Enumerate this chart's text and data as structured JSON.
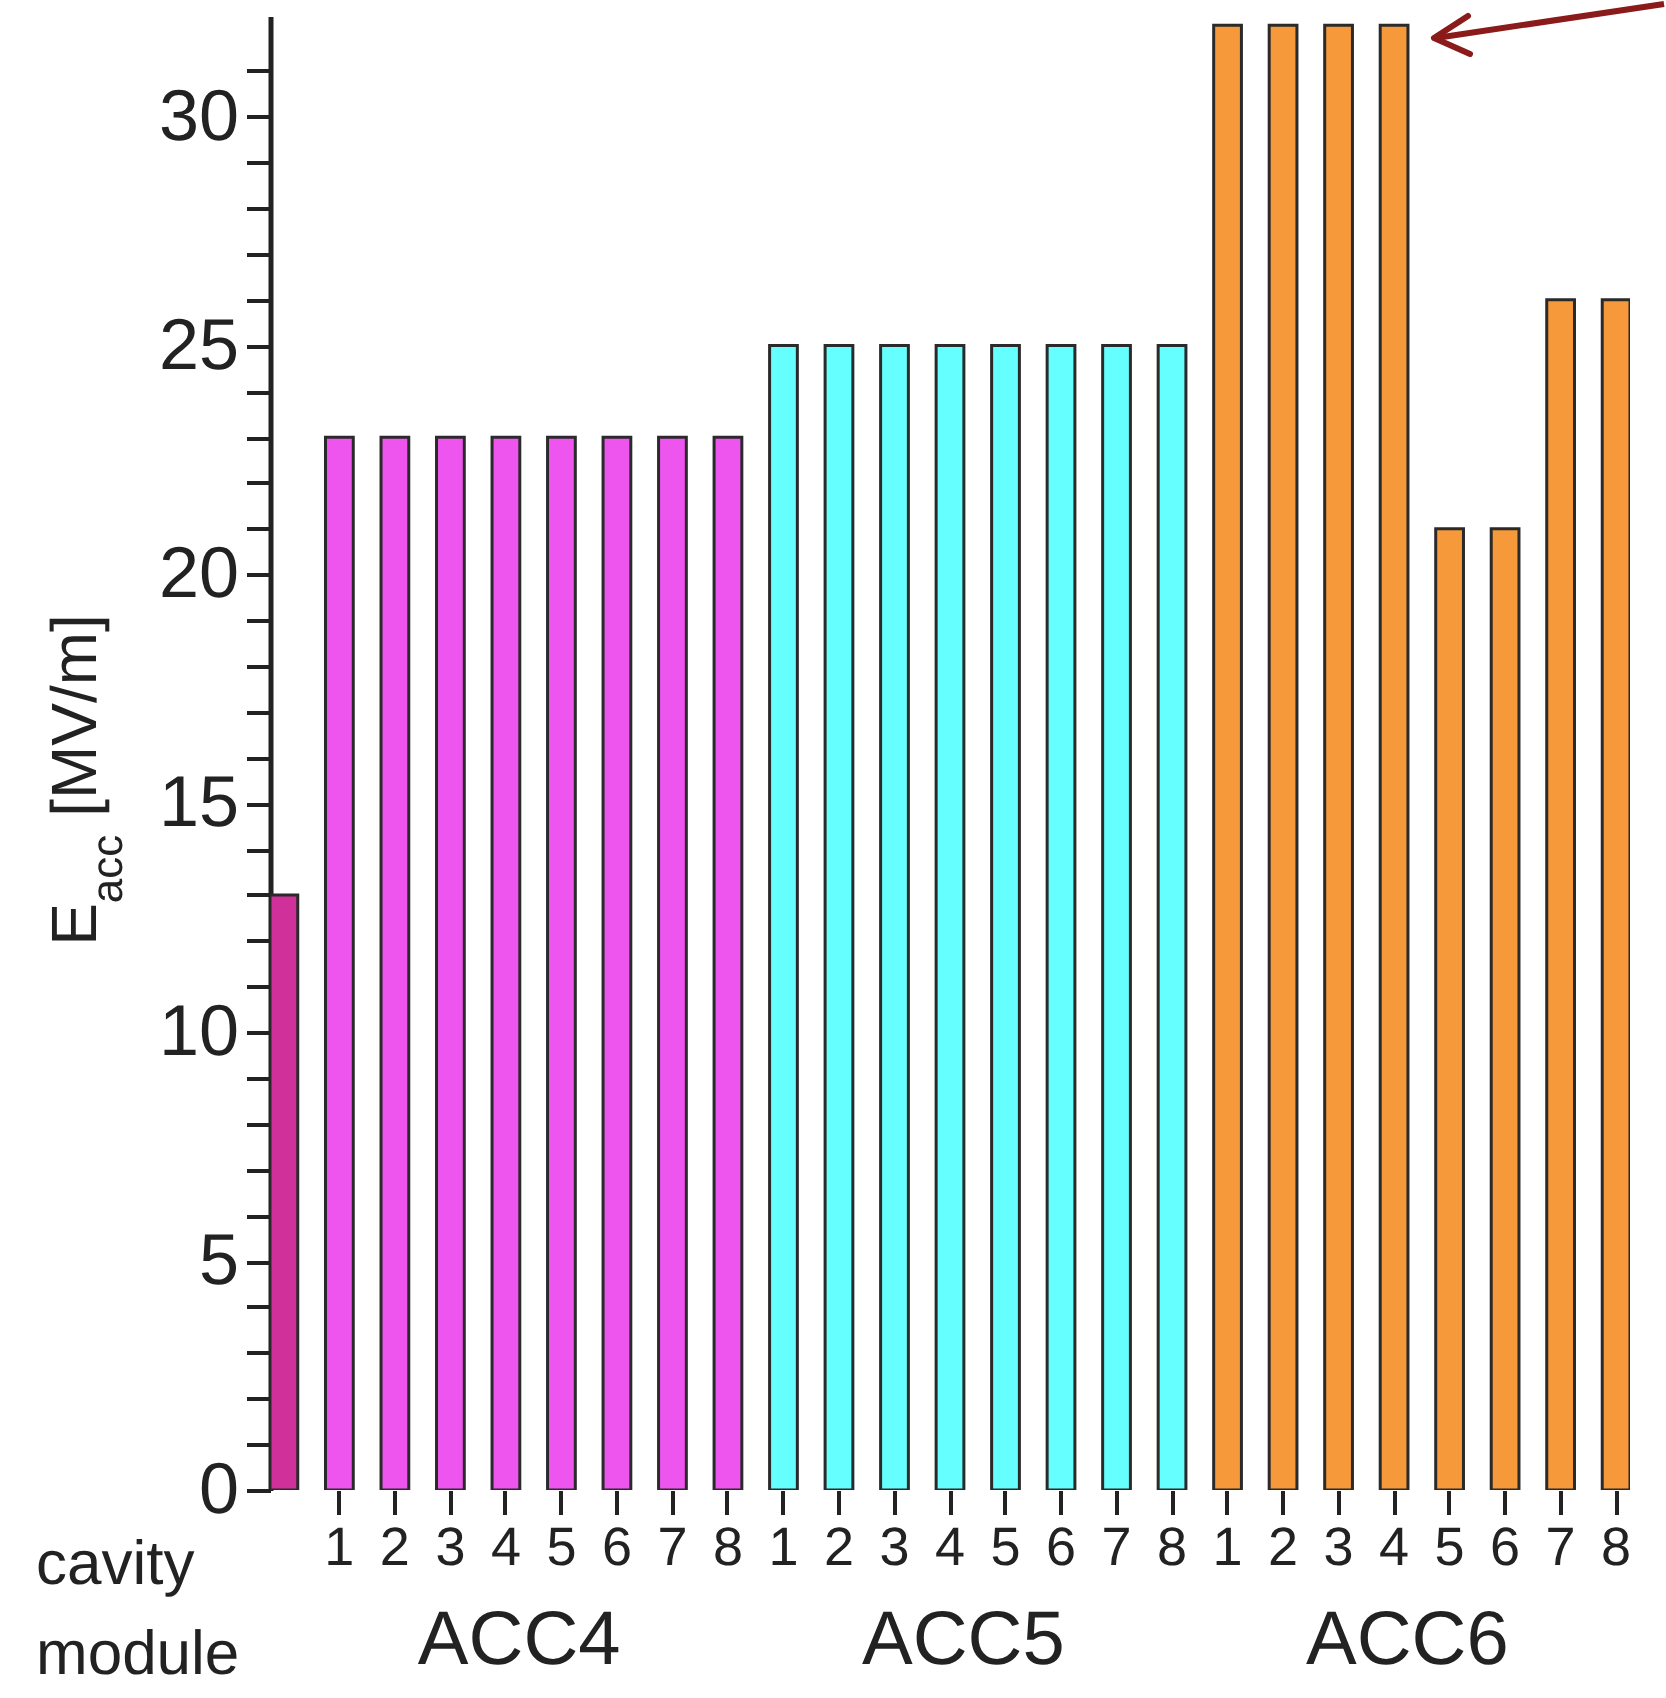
{
  "chart_data": {
    "type": "bar",
    "ylabel": "E$_{acc}$ [MV/m]",
    "categories": [
      null,
      "1",
      "2",
      "3",
      "4",
      "5",
      "6",
      "7",
      "8",
      "1",
      "2",
      "3",
      "4",
      "5",
      "6",
      "7",
      "8",
      "1",
      "2",
      "3",
      "4",
      "5",
      "6",
      "7",
      "8"
    ],
    "series": [
      {
        "color": "#d0309a",
        "values": [
          13,
          null,
          null,
          null,
          null,
          null,
          null,
          null,
          null,
          null,
          null,
          null,
          null,
          null,
          null,
          null,
          null,
          null,
          null,
          null,
          null,
          null,
          null,
          null,
          null
        ]
      },
      {
        "name": "ACC4",
        "color": "#ee55ee",
        "values": [
          null,
          23,
          23,
          23,
          23,
          23,
          23,
          23,
          23,
          null,
          null,
          null,
          null,
          null,
          null,
          null,
          null,
          null,
          null,
          null,
          null,
          null,
          null,
          null,
          null
        ]
      },
      {
        "name": "ACC5",
        "color": "#66ffff",
        "values": [
          null,
          null,
          null,
          null,
          null,
          null,
          null,
          null,
          null,
          25,
          25,
          25,
          25,
          25,
          25,
          25,
          25,
          null,
          null,
          null,
          null,
          null,
          null,
          null,
          null
        ]
      },
      {
        "name": "ACC6",
        "color": "#f5993a",
        "values": [
          null,
          null,
          null,
          null,
          null,
          null,
          null,
          null,
          null,
          null,
          null,
          null,
          null,
          null,
          null,
          null,
          null,
          32,
          32,
          32,
          32,
          21,
          21,
          26,
          26
        ]
      }
    ],
    "ylim": [
      0,
      32.2
    ],
    "yticks": [
      0,
      {
        "value": 1,
        "label": null
      },
      {
        "value": 2,
        "label": null
      },
      {
        "value": 3,
        "label": null
      },
      {
        "value": 4,
        "label": null
      },
      5,
      {
        "value": 6,
        "label": null
      },
      {
        "value": 7,
        "label": null
      },
      {
        "value": 8,
        "label": null
      },
      {
        "value": 9,
        "label": null
      },
      10,
      {
        "value": 11,
        "label": null
      },
      {
        "value": 12,
        "label": null
      },
      {
        "value": 13,
        "label": null
      },
      {
        "value": 14,
        "label": null
      },
      15,
      {
        "value": 16,
        "label": null
      },
      {
        "value": 17,
        "label": null
      },
      {
        "value": 18,
        "label": null
      },
      {
        "value": 19,
        "label": null
      },
      20,
      {
        "value": 21,
        "label": null
      },
      {
        "value": 22,
        "label": null
      },
      {
        "value": 23,
        "label": null
      },
      {
        "value": 24,
        "label": null
      },
      25,
      {
        "value": 26,
        "label": null
      },
      {
        "value": 27,
        "label": null
      },
      {
        "value": 28,
        "label": null
      },
      {
        "value": 29,
        "label": null
      },
      30,
      {
        "value": 31,
        "label": null
      }
    ],
    "legend": "bottom",
    "annotations": [
      "cavity",
      "module"
    ]
  }
}
